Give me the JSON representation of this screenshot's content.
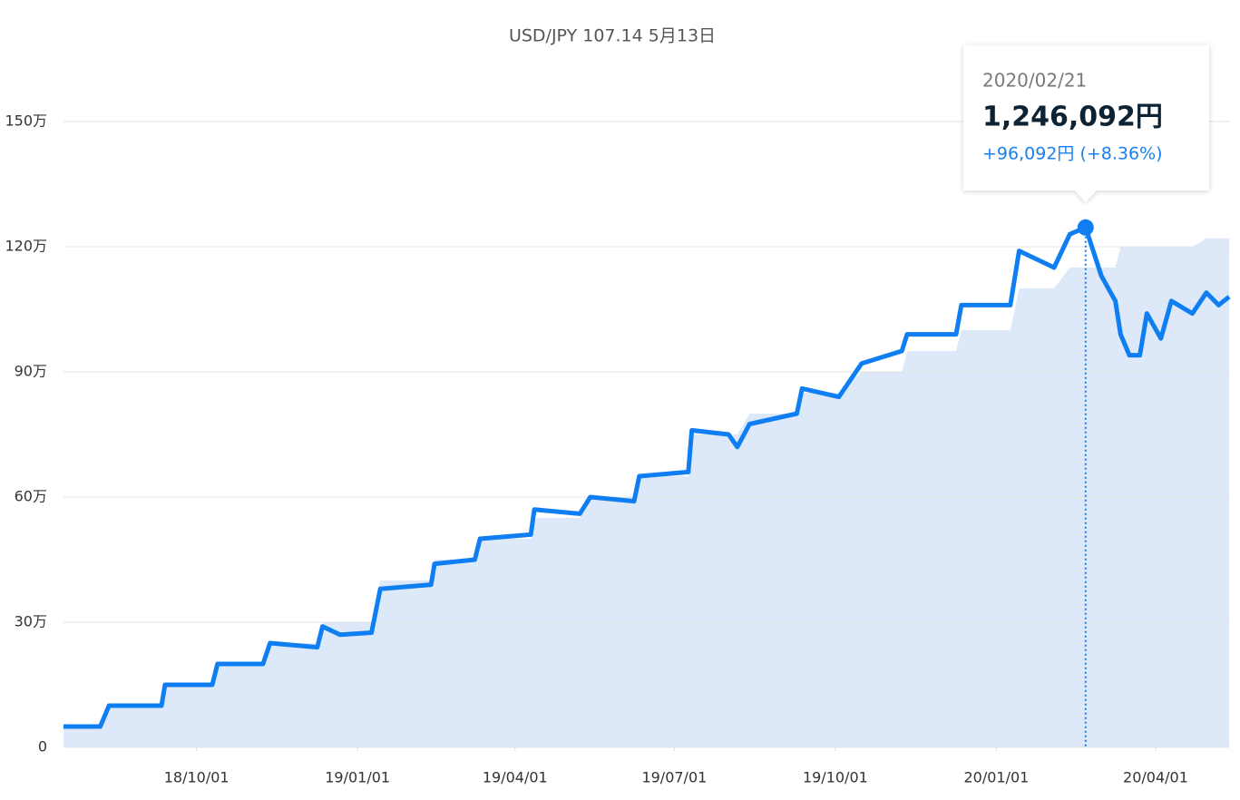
{
  "chart_data": {
    "type": "line",
    "subtitle": "USD/JPY 107.14 5月13日",
    "x": [
      "18/07/17",
      "18/08/07",
      "18/08/12",
      "18/09/11",
      "18/09/13",
      "18/10/10",
      "18/10/13",
      "18/11/08",
      "18/11/12",
      "18/12/09",
      "18/12/12",
      "18/12/22",
      "19/01/09",
      "19/01/14",
      "19/02/12",
      "19/02/14",
      "19/03/09",
      "19/03/12",
      "19/04/10",
      "19/04/12",
      "19/05/08",
      "19/05/14",
      "19/06/08",
      "19/06/11",
      "19/07/09",
      "19/07/11",
      "19/08/01",
      "19/08/06",
      "19/08/13",
      "19/09/09",
      "19/09/12",
      "19/10/03",
      "19/10/16",
      "19/11/08",
      "19/11/11",
      "19/12/09",
      "19/12/12",
      "20/01/09",
      "20/01/14",
      "20/02/03",
      "20/02/12",
      "20/02/21",
      "20/03/01",
      "20/03/09",
      "20/03/12",
      "20/03/17",
      "20/03/23",
      "20/03/27",
      "20/04/04",
      "20/04/10",
      "20/04/22",
      "20/04/30",
      "20/05/07",
      "20/05/13"
    ],
    "series": [
      {
        "type": "line",
        "color": "#0f7ef2",
        "values": [
          50000,
          50000,
          100000,
          100000,
          150000,
          150000,
          200000,
          200000,
          250000,
          240000,
          290000,
          270000,
          275000,
          380000,
          390000,
          440000,
          450000,
          500000,
          510000,
          570000,
          560000,
          600000,
          590000,
          650000,
          660000,
          760000,
          750000,
          720000,
          775000,
          800000,
          860000,
          840000,
          920000,
          950000,
          990000,
          990000,
          1060000,
          1060000,
          1190000,
          1150000,
          1230000,
          1246092,
          1130000,
          1070000,
          990000,
          940000,
          940000,
          1040000,
          980000,
          1070000,
          1040000,
          1090000,
          1060000,
          1080000
        ]
      },
      {
        "type": "area",
        "color": "#dde9f8",
        "values": [
          50000,
          50000,
          100000,
          100000,
          150000,
          150000,
          200000,
          200000,
          250000,
          250000,
          300000,
          300000,
          300000,
          400000,
          400000,
          450000,
          450000,
          500000,
          500000,
          550000,
          550000,
          600000,
          600000,
          650000,
          650000,
          750000,
          750000,
          750000,
          800000,
          800000,
          850000,
          850000,
          900000,
          900000,
          950000,
          950000,
          1000000,
          1000000,
          1100000,
          1100000,
          1150000,
          1150000,
          1150000,
          1150000,
          1200000,
          1200000,
          1200000,
          1200000,
          1200000,
          1200000,
          1200000,
          1220000,
          1220000,
          1220000
        ]
      }
    ],
    "xlim": [
      "18/07/17",
      "20/05/13"
    ],
    "xticks": [
      "18/10/01",
      "19/01/01",
      "19/04/01",
      "19/07/01",
      "19/10/01",
      "20/01/01",
      "20/04/01"
    ],
    "ylim": [
      0,
      1500000
    ],
    "yticks": [
      0,
      {
        "value": 300000,
        "label": "30万"
      },
      {
        "value": 600000,
        "label": "60万"
      },
      {
        "value": 900000,
        "label": "90万"
      },
      {
        "value": 1200000,
        "label": "120万"
      },
      {
        "value": 1500000,
        "label": "150万"
      }
    ],
    "grid": true,
    "tooltip": {
      "point": 41,
      "date": "2020/02/21",
      "value": "1,246,092円",
      "change": "+96,092円 (+8.36%)"
    }
  }
}
